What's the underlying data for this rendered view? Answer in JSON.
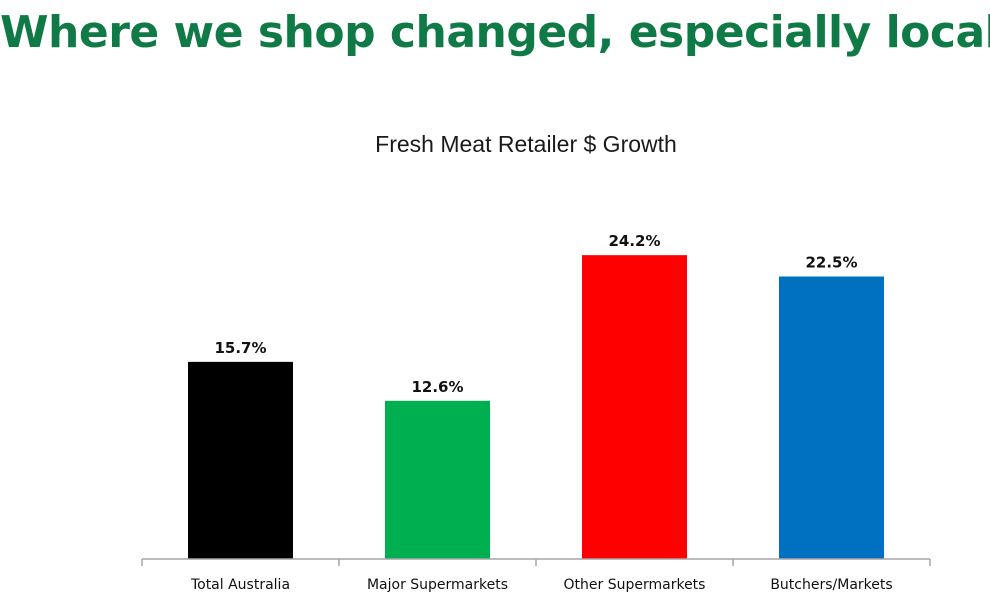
{
  "slide": {
    "title": "Where we shop changed, especially local"
  },
  "chart_data": {
    "type": "bar",
    "title": "Fresh Meat Retailer $ Growth",
    "xlabel": "",
    "ylabel": "",
    "categories": [
      "Total Australia",
      "Major Supermarkets",
      "Other Supermarkets",
      "Butchers/Markets"
    ],
    "values": [
      15.7,
      12.6,
      24.2,
      22.5
    ],
    "data_labels": [
      "15.7%",
      "12.6%",
      "24.2%",
      "22.5%"
    ],
    "colors": [
      "#000000",
      "#00b050",
      "#ff0000",
      "#0070c0"
    ],
    "ylim": [
      0,
      27
    ],
    "grid": false,
    "legend": "none"
  }
}
